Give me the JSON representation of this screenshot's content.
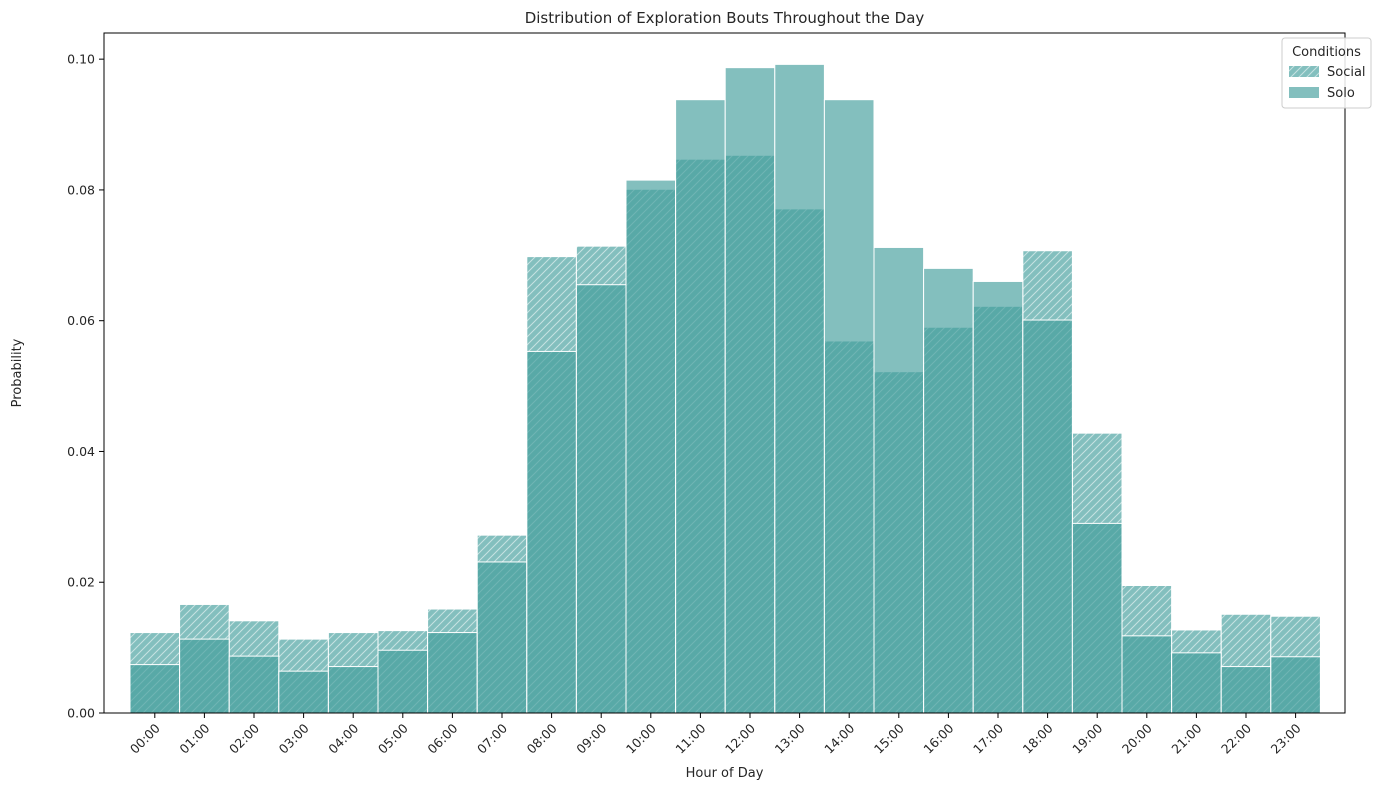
{
  "chart_data": {
    "type": "bar",
    "title": "Distribution of Exploration Bouts Throughout the Day",
    "xlabel": "Hour of Day",
    "ylabel": "Probability",
    "ylim": [
      0,
      0.104
    ],
    "yticks": [
      0.0,
      0.02,
      0.04,
      0.06,
      0.08,
      0.1
    ],
    "ytick_labels": [
      "0.00",
      "0.02",
      "0.04",
      "0.06",
      "0.08",
      "0.10"
    ],
    "categories": [
      "00:00",
      "01:00",
      "02:00",
      "03:00",
      "04:00",
      "05:00",
      "06:00",
      "07:00",
      "08:00",
      "09:00",
      "10:00",
      "11:00",
      "12:00",
      "13:00",
      "14:00",
      "15:00",
      "16:00",
      "17:00",
      "18:00",
      "19:00",
      "20:00",
      "21:00",
      "22:00",
      "23:00"
    ],
    "series": [
      {
        "name": "Social",
        "hatch": "diagonal",
        "values": [
          0.0123,
          0.0166,
          0.0141,
          0.0113,
          0.0123,
          0.0126,
          0.0159,
          0.0272,
          0.0698,
          0.0714,
          0.0801,
          0.0847,
          0.0853,
          0.0771,
          0.0569,
          0.0522,
          0.059,
          0.0622,
          0.0707,
          0.0428,
          0.0195,
          0.0127,
          0.0151,
          0.0148
        ]
      },
      {
        "name": "Solo",
        "hatch": "none",
        "values": [
          0.0074,
          0.0113,
          0.0087,
          0.0064,
          0.0071,
          0.0096,
          0.0123,
          0.0231,
          0.0553,
          0.0655,
          0.0815,
          0.0938,
          0.0987,
          0.0992,
          0.0938,
          0.0712,
          0.068,
          0.066,
          0.0601,
          0.029,
          0.0118,
          0.0092,
          0.0071,
          0.0086
        ]
      }
    ],
    "legend": {
      "title": "Conditions",
      "position": "top-right"
    },
    "colors": {
      "bar_fill": "#409d9b",
      "hatch_stroke": "#ffffff",
      "edge": "#ffffff",
      "axis": "#000000",
      "text": "#262626"
    }
  }
}
